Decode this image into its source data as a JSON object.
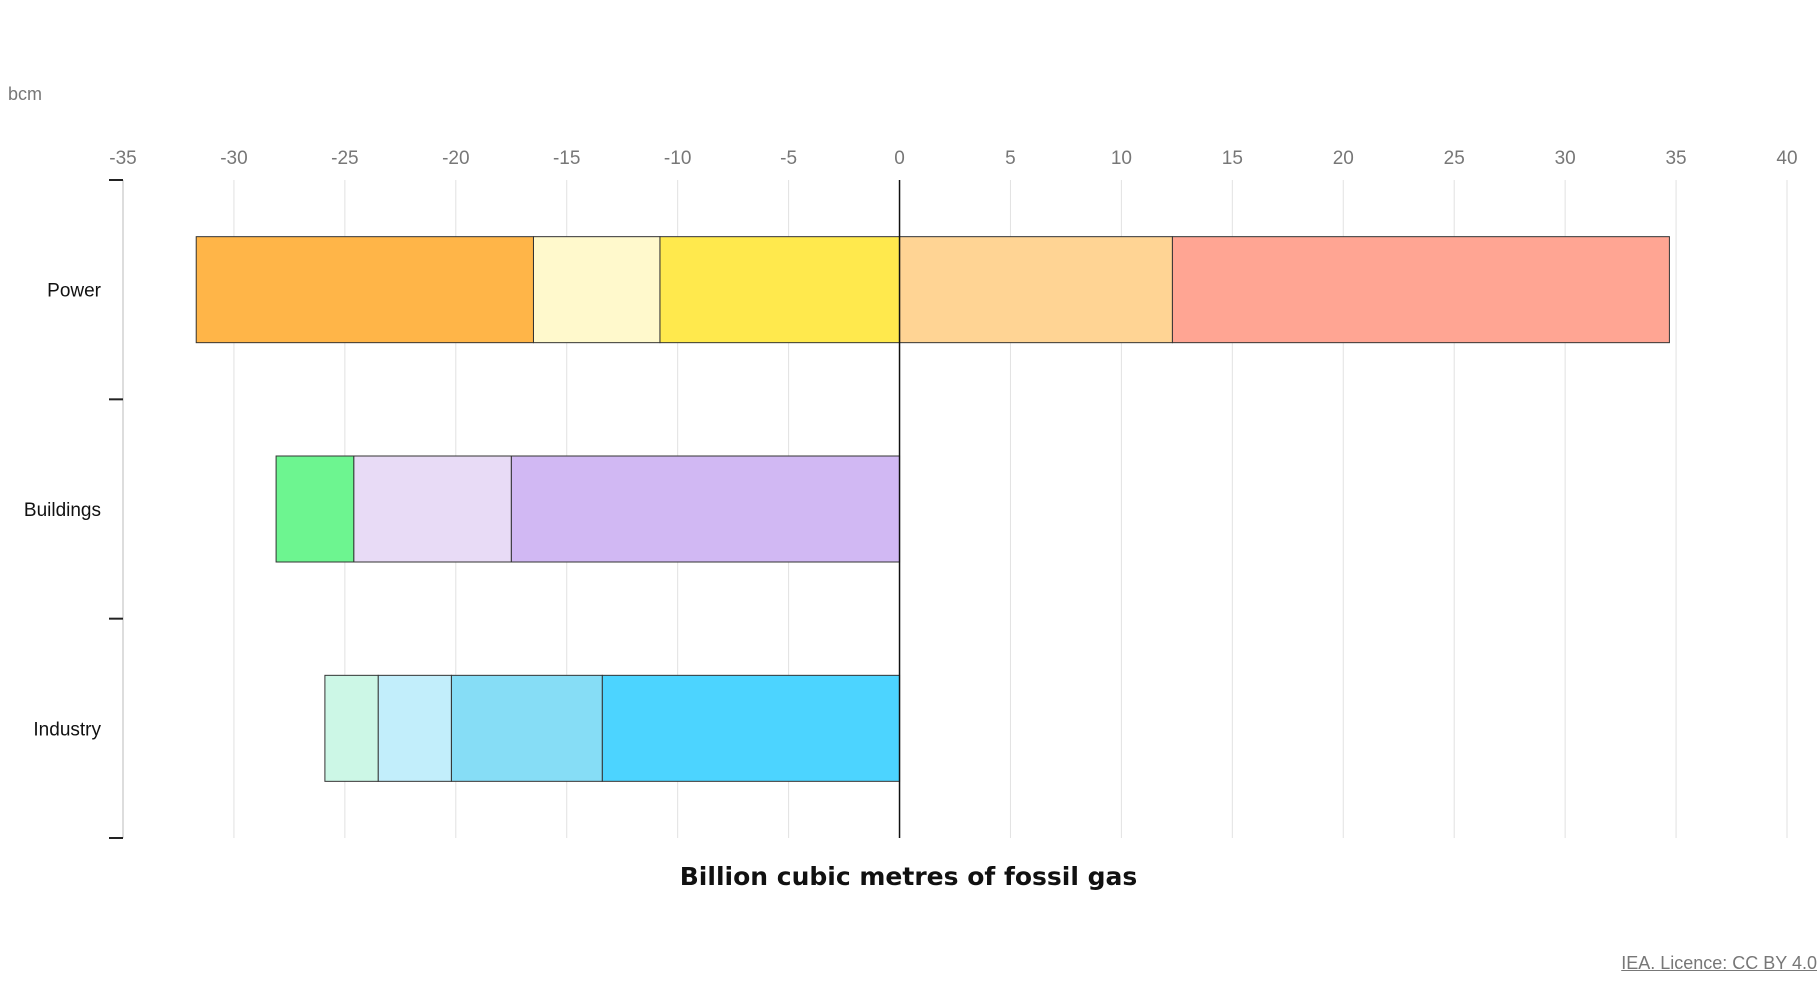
{
  "unit_label": "bcm",
  "credit": "IEA. Licence: CC BY 4.0",
  "chart_data": {
    "type": "bar",
    "orientation": "horizontal",
    "stacked": true,
    "xlabel": "Billion cubic metres of fossil gas",
    "xlim": [
      -35,
      40
    ],
    "xticks": [
      -35,
      -30,
      -25,
      -20,
      -15,
      -10,
      -5,
      0,
      5,
      10,
      15,
      20,
      25,
      30,
      35,
      40
    ],
    "grid": true,
    "legend": "none",
    "categories": [
      "Power",
      "Buildings",
      "Industry"
    ],
    "series": [
      {
        "color": "#FFE94D",
        "values": [
          -10.8,
          0,
          0
        ]
      },
      {
        "color": "#FFF9CC",
        "values": [
          -5.7,
          0,
          0
        ]
      },
      {
        "color": "#FFB548",
        "values": [
          -15.2,
          0,
          0
        ]
      },
      {
        "color": "#FFD494",
        "values": [
          12.3,
          0,
          0
        ]
      },
      {
        "color": "#FFA593",
        "values": [
          22.4,
          0,
          0
        ]
      },
      {
        "color": "#D1B8F3",
        "values": [
          0,
          -17.5,
          0
        ]
      },
      {
        "color": "#E8DBF6",
        "values": [
          0,
          -7.1,
          0
        ]
      },
      {
        "color": "#6DF590",
        "values": [
          0,
          -3.5,
          0
        ]
      },
      {
        "color": "#4CD4FF",
        "values": [
          0,
          0,
          -13.4
        ]
      },
      {
        "color": "#86DDF6",
        "values": [
          0,
          0,
          -6.8
        ]
      },
      {
        "color": "#C2EEFB",
        "values": [
          0,
          0,
          -3.3
        ]
      },
      {
        "color": "#CCF7E6",
        "values": [
          0,
          0,
          -2.4
        ]
      }
    ]
  }
}
